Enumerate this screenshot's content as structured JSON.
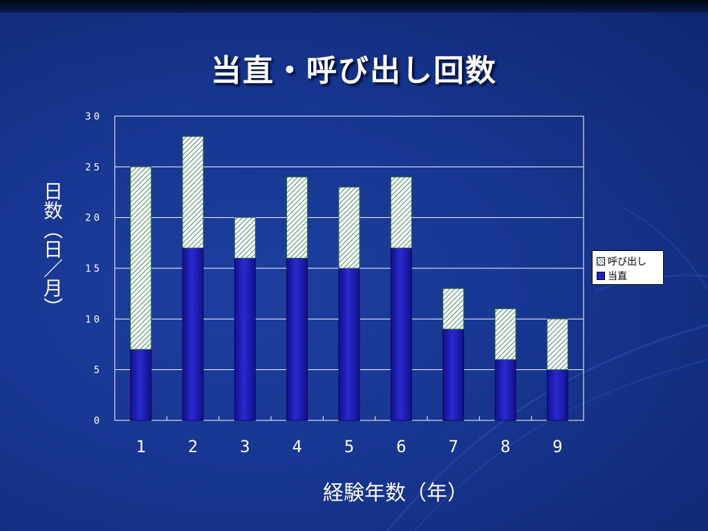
{
  "slide": {
    "title": "当直・呼び出し回数"
  },
  "chart_data": {
    "type": "bar",
    "stacked": true,
    "categories": [
      "1",
      "2",
      "3",
      "4",
      "5",
      "6",
      "7",
      "8",
      "9"
    ],
    "series": [
      {
        "name": "当直",
        "values": [
          7,
          17,
          16,
          16,
          15,
          17,
          9,
          6,
          5
        ],
        "color": "#2020c0",
        "pattern": "solid-gradient"
      },
      {
        "name": "呼び出し",
        "values": [
          18,
          11,
          4,
          8,
          8,
          7,
          4,
          5,
          5
        ],
        "color": "#3a8a5a",
        "pattern": "diagonal-hatch"
      }
    ],
    "xlabel": "経験年数（年）",
    "ylabel": "日数（日／月）",
    "ylim": [
      0,
      30
    ],
    "yticks": [
      0,
      5,
      10,
      15,
      20,
      25,
      30
    ],
    "grid": true,
    "legend_position": "right"
  }
}
